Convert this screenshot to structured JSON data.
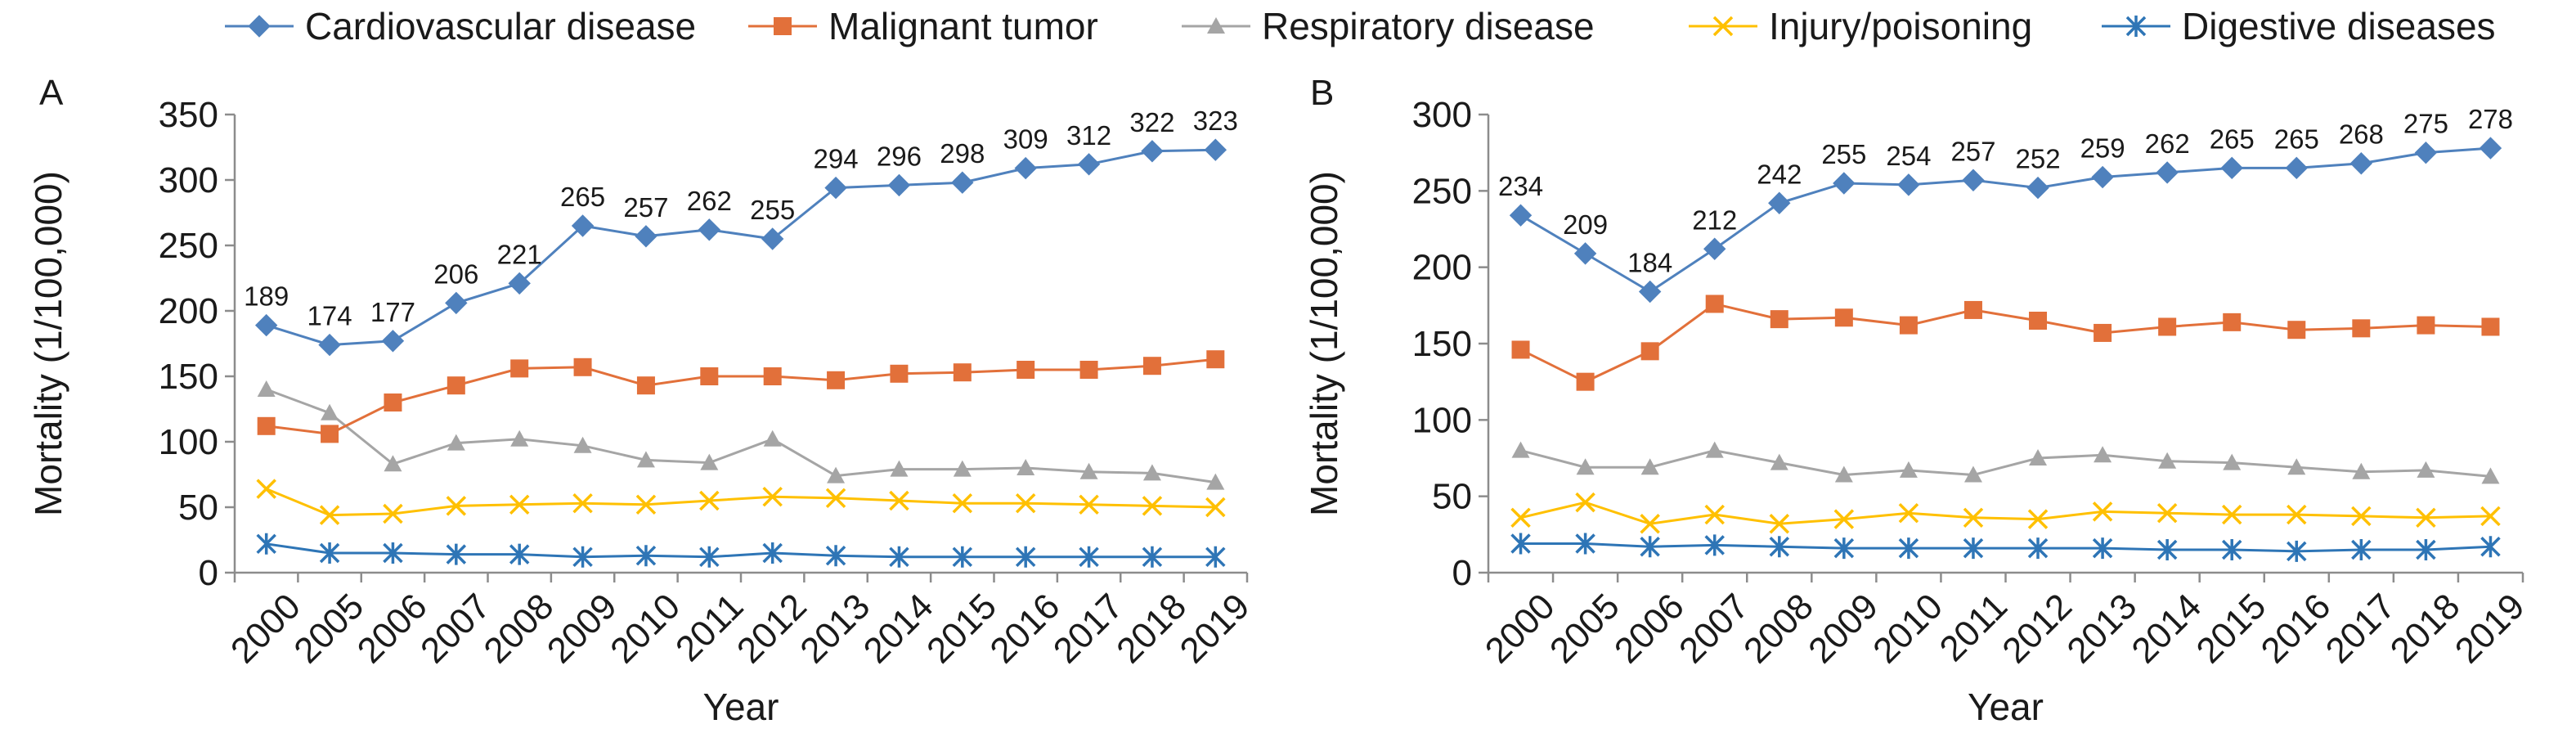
{
  "legend": [
    {
      "name": "Cardiovascular disease",
      "color": "#4F81BD",
      "marker": "diamond"
    },
    {
      "name": "Malignant tumor",
      "color": "#E2703A",
      "marker": "square"
    },
    {
      "name": "Respiratory disease",
      "color": "#A5A5A5",
      "marker": "triangle"
    },
    {
      "name": "Injury/poisoning",
      "color": "#FFC000",
      "marker": "x"
    },
    {
      "name": "Digestive diseases",
      "color": "#2E75B6",
      "marker": "star"
    }
  ],
  "chart_data": [
    {
      "type": "line",
      "panel": "A",
      "xlabel": "Year",
      "ylabel": "Mortality (1/100,000)",
      "categories": [
        "2000",
        "2005",
        "2006",
        "2007",
        "2008",
        "2009",
        "2010",
        "2011",
        "2012",
        "2013",
        "2014",
        "2015",
        "2016",
        "2017",
        "2018",
        "2019"
      ],
      "ylim": [
        0,
        350
      ],
      "yticks": [
        0,
        50,
        100,
        150,
        200,
        250,
        300,
        350
      ],
      "grid": false,
      "legend_position": "top",
      "labeled_series": "Cardiovascular disease",
      "series": [
        {
          "name": "Cardiovascular disease",
          "values": [
            189,
            174,
            177,
            206,
            221,
            265,
            257,
            262,
            255,
            294,
            296,
            298,
            309,
            312,
            322,
            323
          ]
        },
        {
          "name": "Malignant tumor",
          "values": [
            112,
            106,
            130,
            143,
            156,
            157,
            143,
            150,
            150,
            147,
            152,
            153,
            155,
            155,
            158,
            163
          ]
        },
        {
          "name": "Respiratory disease",
          "values": [
            140,
            122,
            83,
            99,
            102,
            97,
            86,
            84,
            102,
            74,
            79,
            79,
            80,
            77,
            76,
            69
          ]
        },
        {
          "name": "Injury/poisoning",
          "values": [
            64,
            44,
            45,
            51,
            52,
            53,
            52,
            55,
            58,
            57,
            55,
            53,
            53,
            52,
            51,
            50
          ]
        },
        {
          "name": "Digestive diseases",
          "values": [
            22,
            15,
            15,
            14,
            14,
            12,
            13,
            12,
            15,
            13,
            12,
            12,
            12,
            12,
            12,
            12
          ]
        }
      ]
    },
    {
      "type": "line",
      "panel": "B",
      "xlabel": "Year",
      "ylabel": "Mortality (1/100,000)",
      "categories": [
        "2000",
        "2005",
        "2006",
        "2007",
        "2008",
        "2009",
        "2010",
        "2011",
        "2012",
        "2013",
        "2014",
        "2015",
        "2016",
        "2017",
        "2018",
        "2019"
      ],
      "ylim": [
        0,
        300
      ],
      "yticks": [
        0,
        50,
        100,
        150,
        200,
        250,
        300
      ],
      "grid": false,
      "legend_position": "top",
      "labeled_series": "Cardiovascular disease",
      "series": [
        {
          "name": "Cardiovascular disease",
          "values": [
            234,
            209,
            184,
            212,
            242,
            255,
            254,
            257,
            252,
            259,
            262,
            265,
            265,
            268,
            275,
            278
          ]
        },
        {
          "name": "Malignant tumor",
          "values": [
            146,
            125,
            145,
            176,
            166,
            167,
            162,
            172,
            165,
            157,
            161,
            164,
            159,
            160,
            162,
            161
          ]
        },
        {
          "name": "Respiratory disease",
          "values": [
            80,
            69,
            69,
            80,
            72,
            64,
            67,
            64,
            75,
            77,
            73,
            72,
            69,
            66,
            67,
            63
          ]
        },
        {
          "name": "Injury/poisoning",
          "values": [
            36,
            46,
            32,
            38,
            32,
            35,
            39,
            36,
            35,
            40,
            39,
            38,
            38,
            37,
            36,
            37
          ]
        },
        {
          "name": "Digestive diseases",
          "values": [
            19,
            19,
            17,
            18,
            17,
            16,
            16,
            16,
            16,
            16,
            15,
            15,
            14,
            15,
            15,
            17
          ]
        }
      ]
    }
  ]
}
